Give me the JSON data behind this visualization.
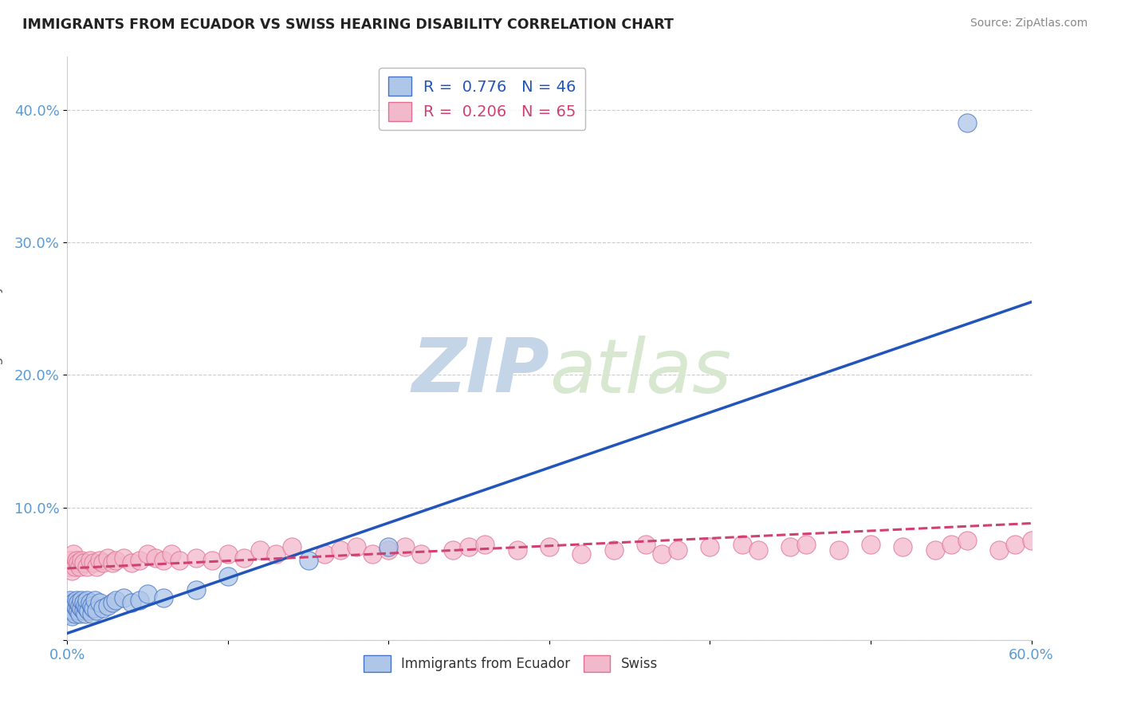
{
  "title": "IMMIGRANTS FROM ECUADOR VS SWISS HEARING DISABILITY CORRELATION CHART",
  "source": "Source: ZipAtlas.com",
  "ylabel": "Hearing Disability",
  "xlim": [
    0.0,
    0.6
  ],
  "ylim": [
    0.0,
    0.44
  ],
  "yticks": [
    0.0,
    0.1,
    0.2,
    0.3,
    0.4
  ],
  "ytick_labels": [
    "",
    "10.0%",
    "20.0%",
    "30.0%",
    "40.0%"
  ],
  "ecuador_R": 0.776,
  "ecuador_N": 46,
  "swiss_R": 0.206,
  "swiss_N": 65,
  "ecuador_color": "#aec6e8",
  "ecuador_edge_color": "#4472c4",
  "swiss_color": "#f2b8cb",
  "swiss_edge_color": "#e07090",
  "ecuador_line_color": "#2255bb",
  "swiss_line_color": "#d04070",
  "background_color": "#ffffff",
  "grid_color": "#cccccc",
  "title_color": "#222222",
  "axis_tick_color": "#5b9bd5",
  "watermark_color": "#d8e4f0",
  "ecuador_line_x0": 0.0,
  "ecuador_line_y0": 0.005,
  "ecuador_line_x1": 0.6,
  "ecuador_line_y1": 0.255,
  "swiss_line_x0": 0.0,
  "swiss_line_y0": 0.054,
  "swiss_line_x1": 0.6,
  "swiss_line_y1": 0.088,
  "ecuador_scatter_x": [
    0.001,
    0.001,
    0.002,
    0.002,
    0.003,
    0.003,
    0.004,
    0.004,
    0.005,
    0.005,
    0.006,
    0.006,
    0.007,
    0.007,
    0.008,
    0.008,
    0.009,
    0.009,
    0.01,
    0.01,
    0.011,
    0.011,
    0.012,
    0.012,
    0.013,
    0.014,
    0.015,
    0.015,
    0.016,
    0.017,
    0.018,
    0.02,
    0.022,
    0.025,
    0.028,
    0.03,
    0.035,
    0.04,
    0.045,
    0.05,
    0.06,
    0.08,
    0.1,
    0.15,
    0.2,
    0.56
  ],
  "ecuador_scatter_y": [
    0.02,
    0.028,
    0.022,
    0.03,
    0.018,
    0.025,
    0.022,
    0.028,
    0.02,
    0.026,
    0.024,
    0.03,
    0.022,
    0.028,
    0.02,
    0.026,
    0.024,
    0.03,
    0.022,
    0.028,
    0.02,
    0.026,
    0.024,
    0.03,
    0.022,
    0.028,
    0.02,
    0.026,
    0.024,
    0.03,
    0.022,
    0.028,
    0.024,
    0.026,
    0.028,
    0.03,
    0.032,
    0.028,
    0.03,
    0.035,
    0.032,
    0.038,
    0.048,
    0.06,
    0.07,
    0.39
  ],
  "swiss_scatter_x": [
    0.001,
    0.002,
    0.003,
    0.004,
    0.005,
    0.006,
    0.007,
    0.008,
    0.009,
    0.01,
    0.012,
    0.014,
    0.016,
    0.018,
    0.02,
    0.022,
    0.025,
    0.028,
    0.03,
    0.035,
    0.04,
    0.045,
    0.05,
    0.055,
    0.06,
    0.065,
    0.07,
    0.08,
    0.09,
    0.1,
    0.11,
    0.12,
    0.13,
    0.14,
    0.16,
    0.17,
    0.18,
    0.19,
    0.2,
    0.21,
    0.22,
    0.24,
    0.25,
    0.26,
    0.28,
    0.3,
    0.32,
    0.34,
    0.36,
    0.37,
    0.38,
    0.4,
    0.42,
    0.43,
    0.45,
    0.46,
    0.48,
    0.5,
    0.52,
    0.54,
    0.55,
    0.56,
    0.58,
    0.59,
    0.6
  ],
  "swiss_scatter_y": [
    0.055,
    0.06,
    0.052,
    0.065,
    0.055,
    0.06,
    0.058,
    0.055,
    0.06,
    0.058,
    0.055,
    0.06,
    0.058,
    0.055,
    0.06,
    0.058,
    0.062,
    0.058,
    0.06,
    0.062,
    0.058,
    0.06,
    0.065,
    0.062,
    0.06,
    0.065,
    0.06,
    0.062,
    0.06,
    0.065,
    0.062,
    0.068,
    0.065,
    0.07,
    0.065,
    0.068,
    0.07,
    0.065,
    0.068,
    0.07,
    0.065,
    0.068,
    0.07,
    0.072,
    0.068,
    0.07,
    0.065,
    0.068,
    0.072,
    0.065,
    0.068,
    0.07,
    0.072,
    0.068,
    0.07,
    0.072,
    0.068,
    0.072,
    0.07,
    0.068,
    0.072,
    0.075,
    0.068,
    0.072,
    0.075
  ]
}
